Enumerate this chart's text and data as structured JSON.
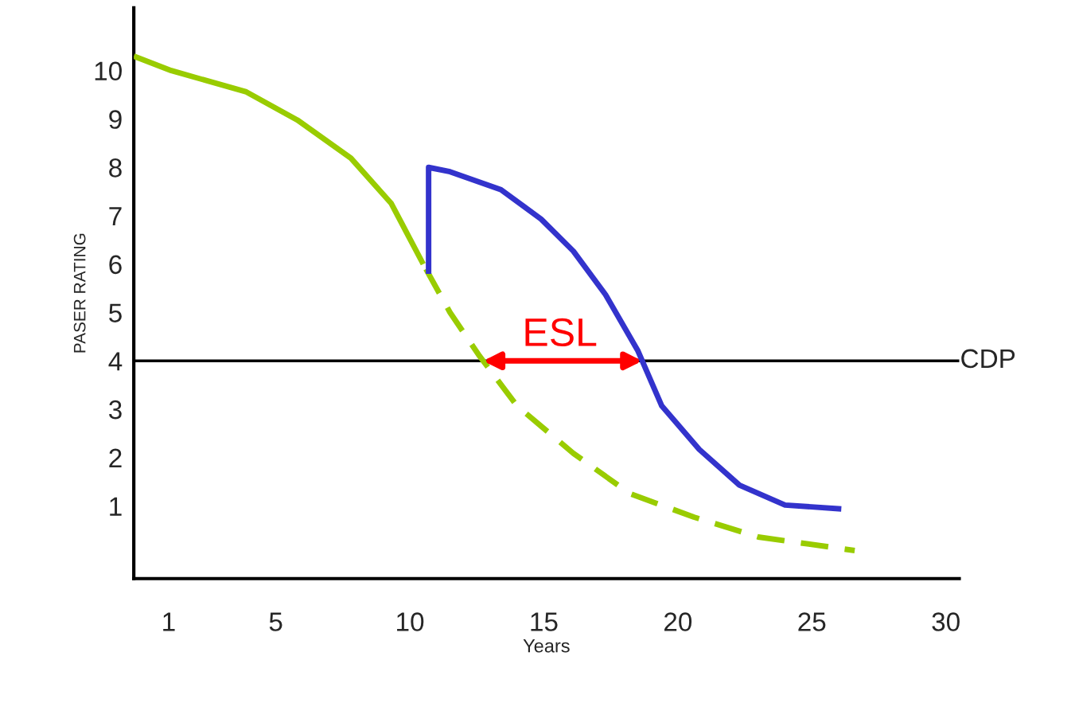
{
  "chart_data": {
    "type": "line",
    "xlabel": "Years",
    "ylabel": "PASER RATING",
    "xlim": [
      -0.3,
      30.5
    ],
    "ylim": [
      -0.5,
      11.3
    ],
    "xticks": [
      1,
      5,
      10,
      15,
      20,
      25,
      30
    ],
    "yticks": [
      1,
      2,
      3,
      4,
      5,
      6,
      7,
      8,
      9,
      10
    ],
    "grid": false,
    "legend": false,
    "series": [
      {
        "color": "#99cc00",
        "line_style": "solid",
        "x": [
          -0.3,
          1.1,
          3.9,
          5.8,
          7.8,
          9.3,
          10.5
        ],
        "values": [
          10.3,
          10.0,
          9.56,
          8.98,
          8.19,
          7.26,
          6.0
        ]
      },
      {
        "color": "#99cc00",
        "line_style": "dashed",
        "x": [
          10.6,
          11.5,
          12.6,
          14.0,
          16.1,
          18.2,
          20.6,
          23.0,
          26.6
        ],
        "values": [
          5.9,
          5.0,
          4.1,
          3.07,
          2.09,
          1.26,
          0.77,
          0.36,
          0.08
        ]
      },
      {
        "color": "#3333cc",
        "line_style": "solid",
        "x": [
          10.7,
          10.7,
          11.5,
          13.4,
          14.9,
          16.1,
          17.3,
          18.5,
          19.4,
          20.8,
          22.3,
          24.0,
          26.1
        ],
        "values": [
          5.8,
          8.0,
          7.91,
          7.54,
          6.93,
          6.27,
          5.37,
          4.22,
          3.07,
          2.17,
          1.43,
          1.02,
          0.94
        ]
      }
    ],
    "ref_lines": [
      {
        "axis": "y",
        "value": 4,
        "label": "CDP",
        "color": "#000000"
      }
    ],
    "annotations": [
      {
        "text": "ESL",
        "x": 15.6,
        "y": 4
      }
    ]
  }
}
